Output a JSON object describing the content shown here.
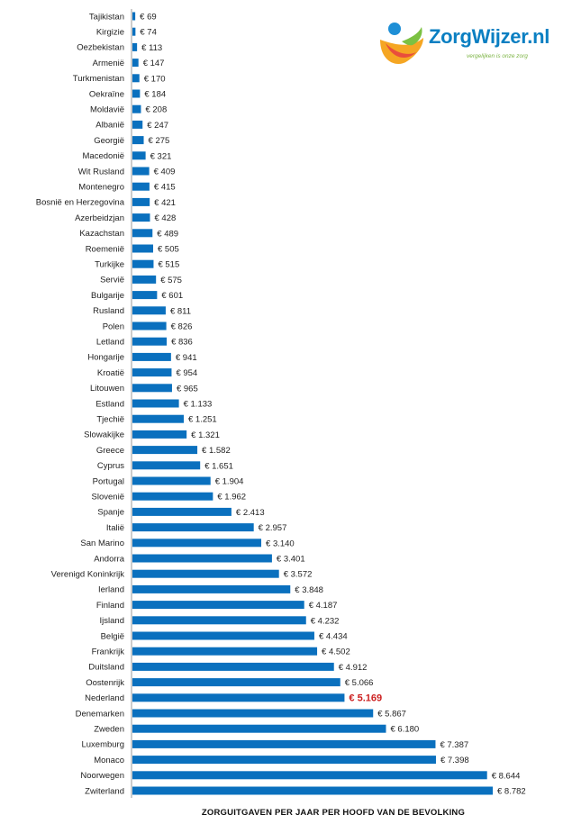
{
  "logo": {
    "name": "ZorgWijzer.nl",
    "tagline": "vergelijken is onze zorg"
  },
  "colors": {
    "bar": "#0a70be",
    "highlight_text": "#cc1f1f",
    "axis": "#999999"
  },
  "chart_data": {
    "type": "bar",
    "orientation": "horizontal",
    "xlabel": "ZORGUITGAVEN PER JAAR PER HOOFD VAN DE BEVOLKING",
    "xlim": [
      0,
      8782
    ],
    "highlight": "Nederland",
    "categories": [
      "Tajikistan",
      "Kirgizie",
      "Oezbekistan",
      "Armenië",
      "Turkmenistan",
      "Oekraïne",
      "Moldavië",
      "Albanië",
      "Georgië",
      "Macedonië",
      "Wit Rusland",
      "Montenegro",
      "Bosnië en Herzegovina",
      "Azerbeidzjan",
      "Kazachstan",
      "Roemenië",
      "Turkijke",
      "Servië",
      "Bulgarije",
      "Rusland",
      "Polen",
      "Letland",
      "Hongarije",
      "Kroatië",
      "Litouwen",
      "Estland",
      "Tjechië",
      "Slowakijke",
      "Greece",
      "Cyprus",
      "Portugal",
      "Slovenië",
      "Spanje",
      "Italië",
      "San Marino",
      "Andorra",
      "Verenigd Koninkrijk",
      "Ierland",
      "Finland",
      "Ijsland",
      "België",
      "Frankrijk",
      "Duitsland",
      "Oostenrijk",
      "Nederland",
      "Denemarken",
      "Zweden",
      "Luxemburg",
      "Monaco",
      "Noorwegen",
      "Zwiterland"
    ],
    "values": [
      69,
      74,
      113,
      147,
      170,
      184,
      208,
      247,
      275,
      321,
      409,
      415,
      421,
      428,
      489,
      505,
      515,
      575,
      601,
      811,
      826,
      836,
      941,
      954,
      965,
      1133,
      1251,
      1321,
      1582,
      1651,
      1904,
      1962,
      2413,
      2957,
      3140,
      3401,
      3572,
      3848,
      4187,
      4232,
      4434,
      4502,
      4912,
      5066,
      5169,
      5867,
      6180,
      7387,
      7398,
      8644,
      8782
    ],
    "value_labels": [
      "€ 69",
      "€ 74",
      "€ 113",
      "€ 147",
      "€ 170",
      "€ 184",
      "€ 208",
      "€ 247",
      "€ 275",
      "€ 321",
      "€ 409",
      "€ 415",
      "€ 421",
      "€ 428",
      "€ 489",
      "€ 505",
      "€ 515",
      "€ 575",
      "€ 601",
      "€ 811",
      "€ 826",
      "€ 836",
      "€ 941",
      "€ 954",
      "€ 965",
      "€ 1.133",
      "€ 1.251",
      "€ 1.321",
      "€ 1.582",
      "€ 1.651",
      "€ 1.904",
      "€ 1.962",
      "€ 2.413",
      "€ 2.957",
      "€ 3.140",
      "€ 3.401",
      "€ 3.572",
      "€ 3.848",
      "€ 4.187",
      "€ 4.232",
      "€ 4.434",
      "€ 4.502",
      "€ 4.912",
      "€ 5.066",
      "€ 5.169",
      "€ 5.867",
      "€ 6.180",
      "€ 7.387",
      "€ 7.398",
      "€ 8.644",
      "€ 8.782"
    ]
  }
}
